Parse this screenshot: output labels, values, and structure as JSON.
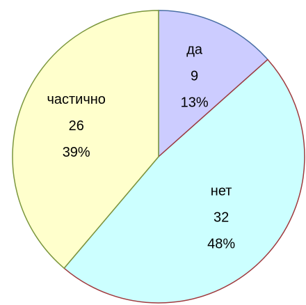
{
  "chart_data": {
    "type": "pie",
    "categories": [
      "да",
      "нет",
      "частично"
    ],
    "values": [
      9,
      32,
      26
    ],
    "percent_labels": [
      "13%",
      "48%",
      "39%"
    ],
    "colors": [
      "#ccccff",
      "#ccffff",
      "#ffffcc"
    ],
    "edge_colors": [
      "#4a6fa5",
      "#a0393d",
      "#7a963c"
    ]
  }
}
